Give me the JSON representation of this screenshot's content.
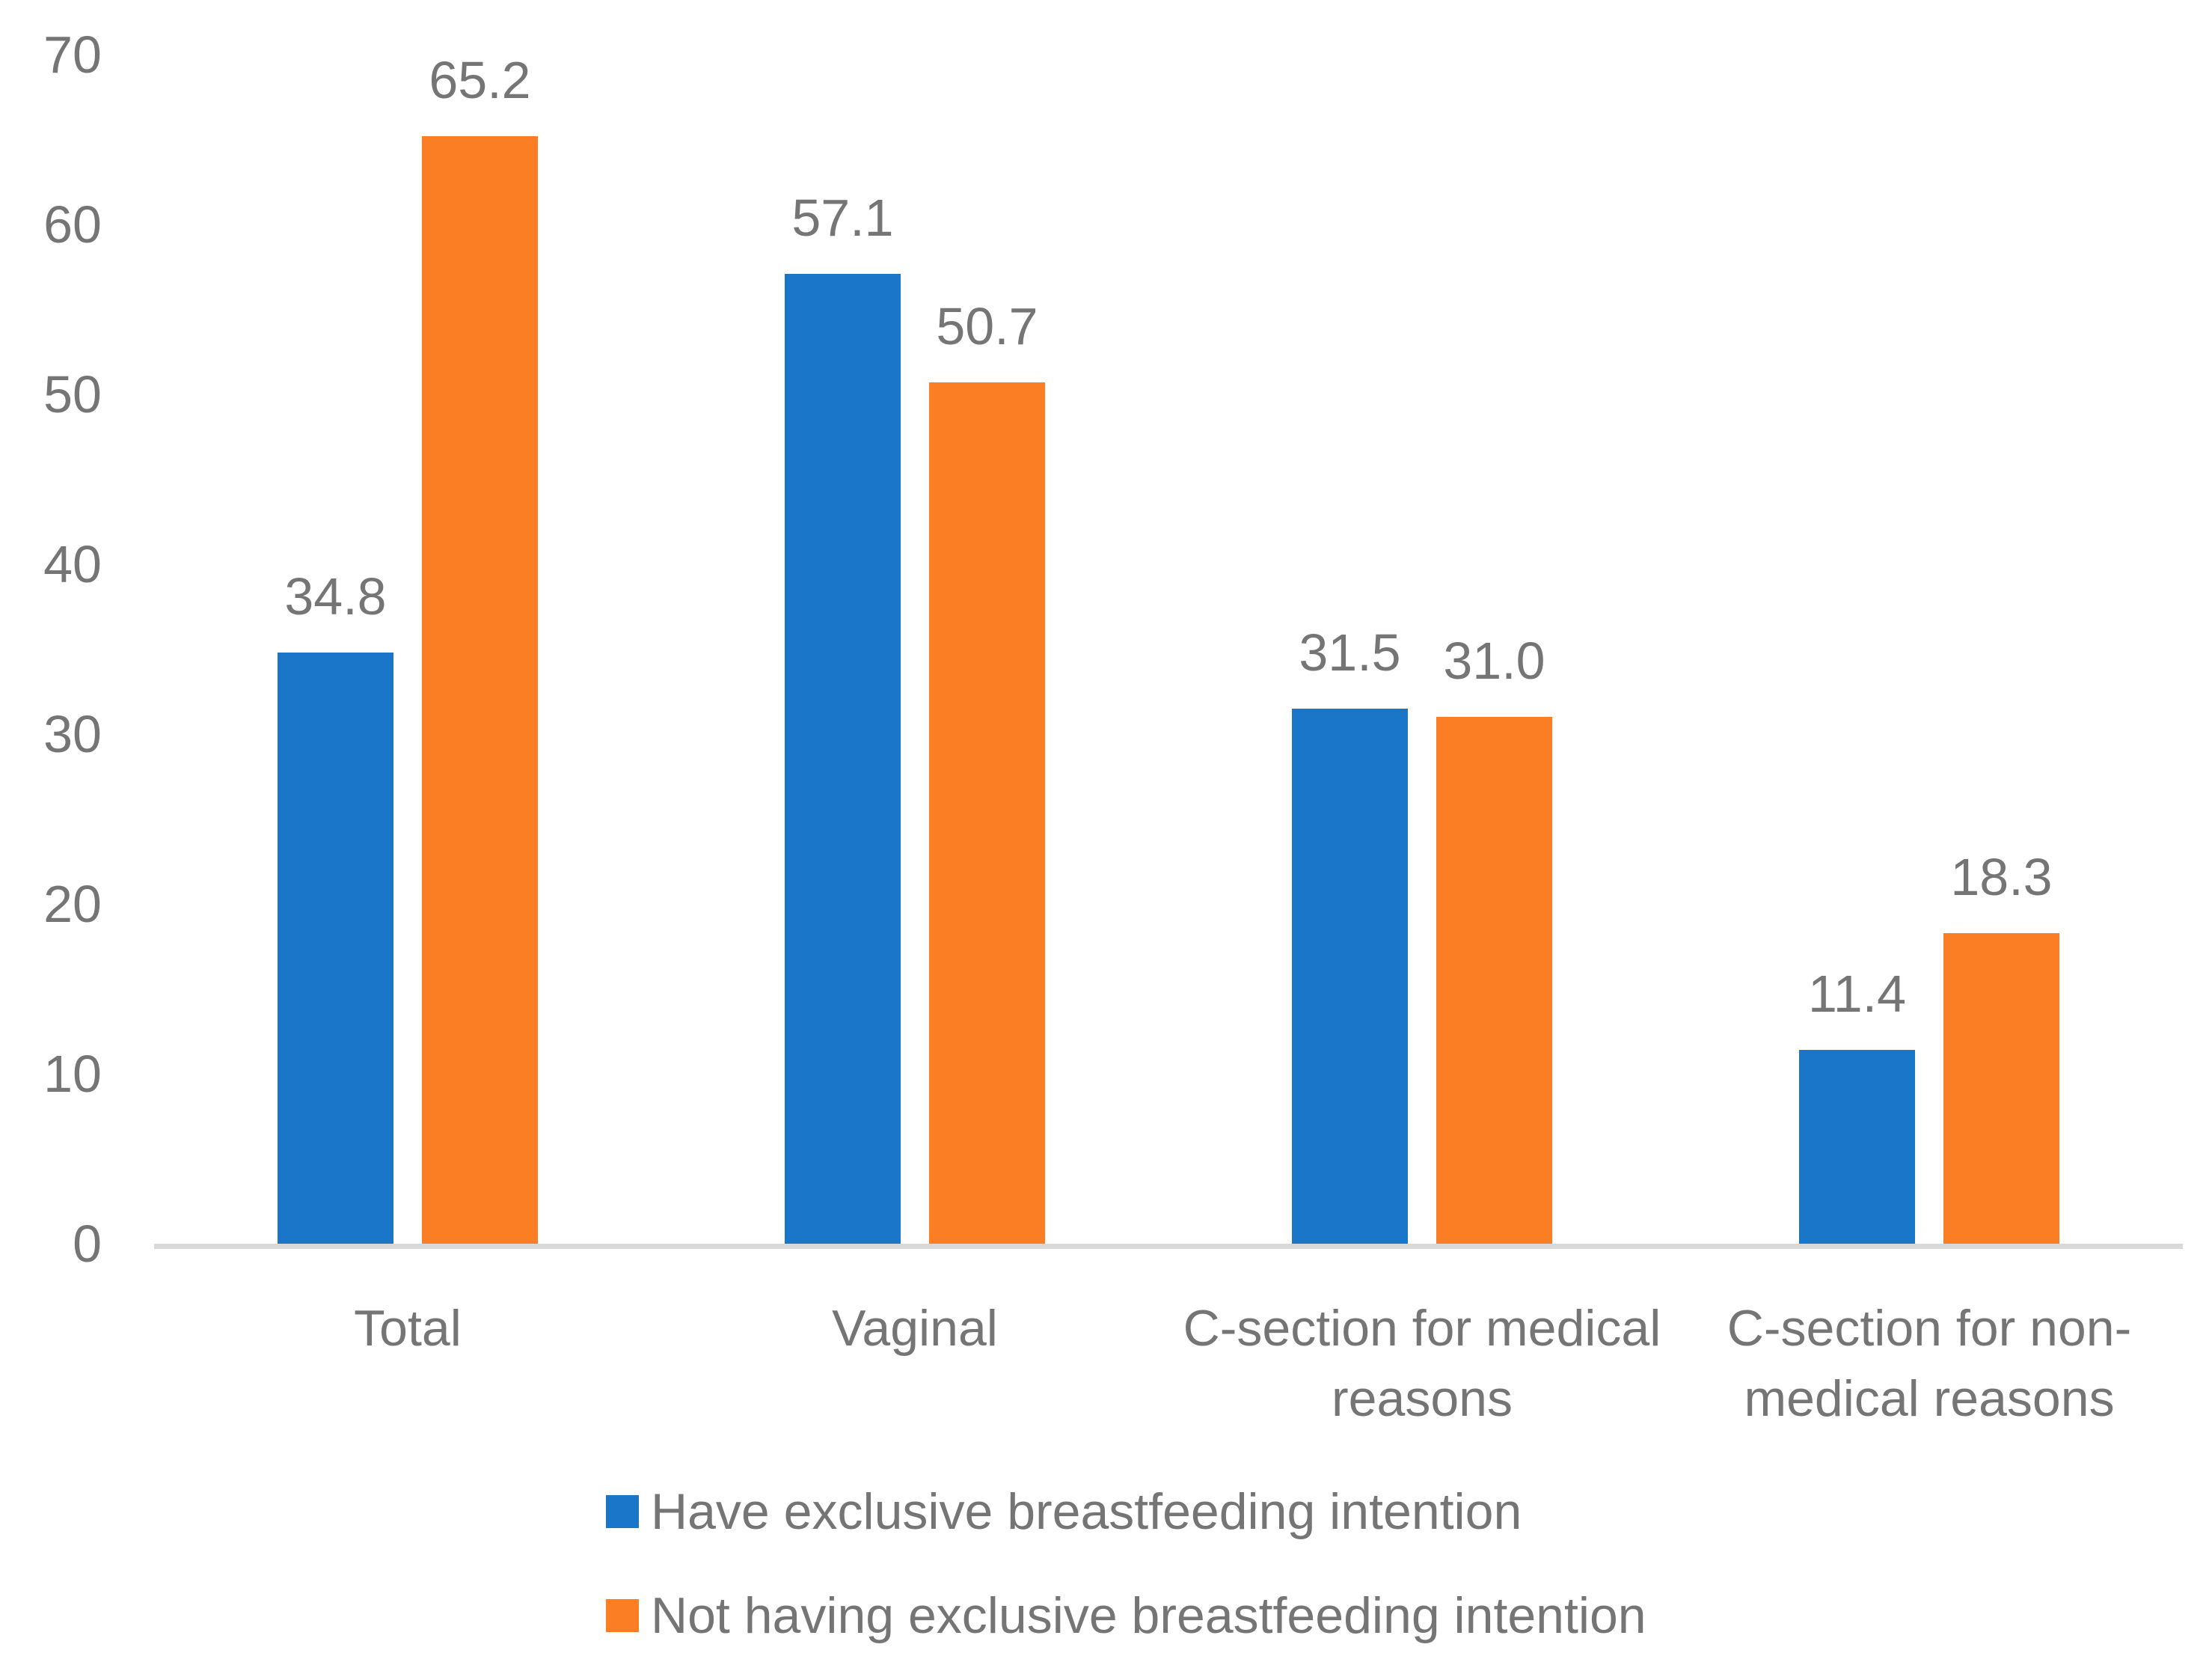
{
  "chart_data": {
    "type": "bar",
    "title": "",
    "xlabel": "",
    "ylabel": "",
    "categories": [
      "Total",
      "Vaginal",
      "C-section for medical reasons",
      "C-section for non-medical reasons"
    ],
    "category_lines": [
      [
        "Total"
      ],
      [
        "Vaginal"
      ],
      [
        "C-section for medical",
        "reasons"
      ],
      [
        "C-section for non-",
        "medical reasons"
      ]
    ],
    "series": [
      {
        "name": "Have exclusive breastfeeding intention",
        "color": "#1976C8",
        "values": [
          34.8,
          57.1,
          31.5,
          11.4
        ],
        "labels": [
          "34.8",
          "57.1",
          "31.5",
          "11.4"
        ]
      },
      {
        "name": "Not having exclusive breastfeeding intention",
        "color": "#FB7D24",
        "values": [
          65.2,
          50.7,
          31.0,
          18.3
        ],
        "labels": [
          "65.2",
          "50.7",
          "31.0",
          "18.3"
        ]
      }
    ],
    "y_axis": {
      "min": 0,
      "max": 70,
      "tick_interval": 10,
      "tick_labels": [
        "0",
        "10",
        "20",
        "30",
        "40",
        "50",
        "60",
        "70"
      ]
    },
    "grid": false,
    "legend_position": "bottom-left-stacked",
    "colors": {
      "text": "#757575",
      "axis_line": "#D9D9D9",
      "background": "#FFFFFF"
    }
  }
}
